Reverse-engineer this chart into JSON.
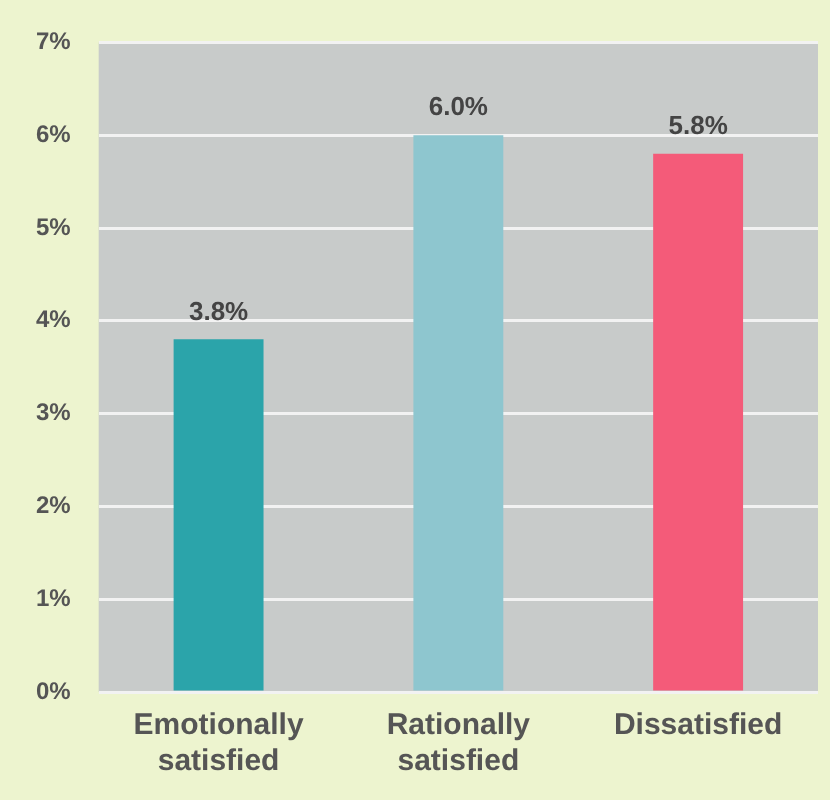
{
  "chart_data": {
    "type": "bar",
    "categories": [
      "Emotionally satisfied",
      "Rationally satisfied",
      "Dissatisfied"
    ],
    "values": [
      3.8,
      6.0,
      5.8
    ],
    "colors": [
      "#2ba4aa",
      "#8ec6cf",
      "#f45b79"
    ],
    "value_labels": [
      "3.8%",
      "6.0%",
      "5.8%"
    ],
    "ylim": [
      0,
      7
    ],
    "yticks": [
      {
        "value": 0,
        "label": "0%"
      },
      {
        "value": 1,
        "label": "1%"
      },
      {
        "value": 2,
        "label": "2%"
      },
      {
        "value": 3,
        "label": "3%"
      },
      {
        "value": 4,
        "label": "4%"
      },
      {
        "value": 5,
        "label": "5%"
      },
      {
        "value": 6,
        "label": "6%"
      },
      {
        "value": 7,
        "label": "7%"
      }
    ],
    "grid": "y",
    "legend": false
  }
}
